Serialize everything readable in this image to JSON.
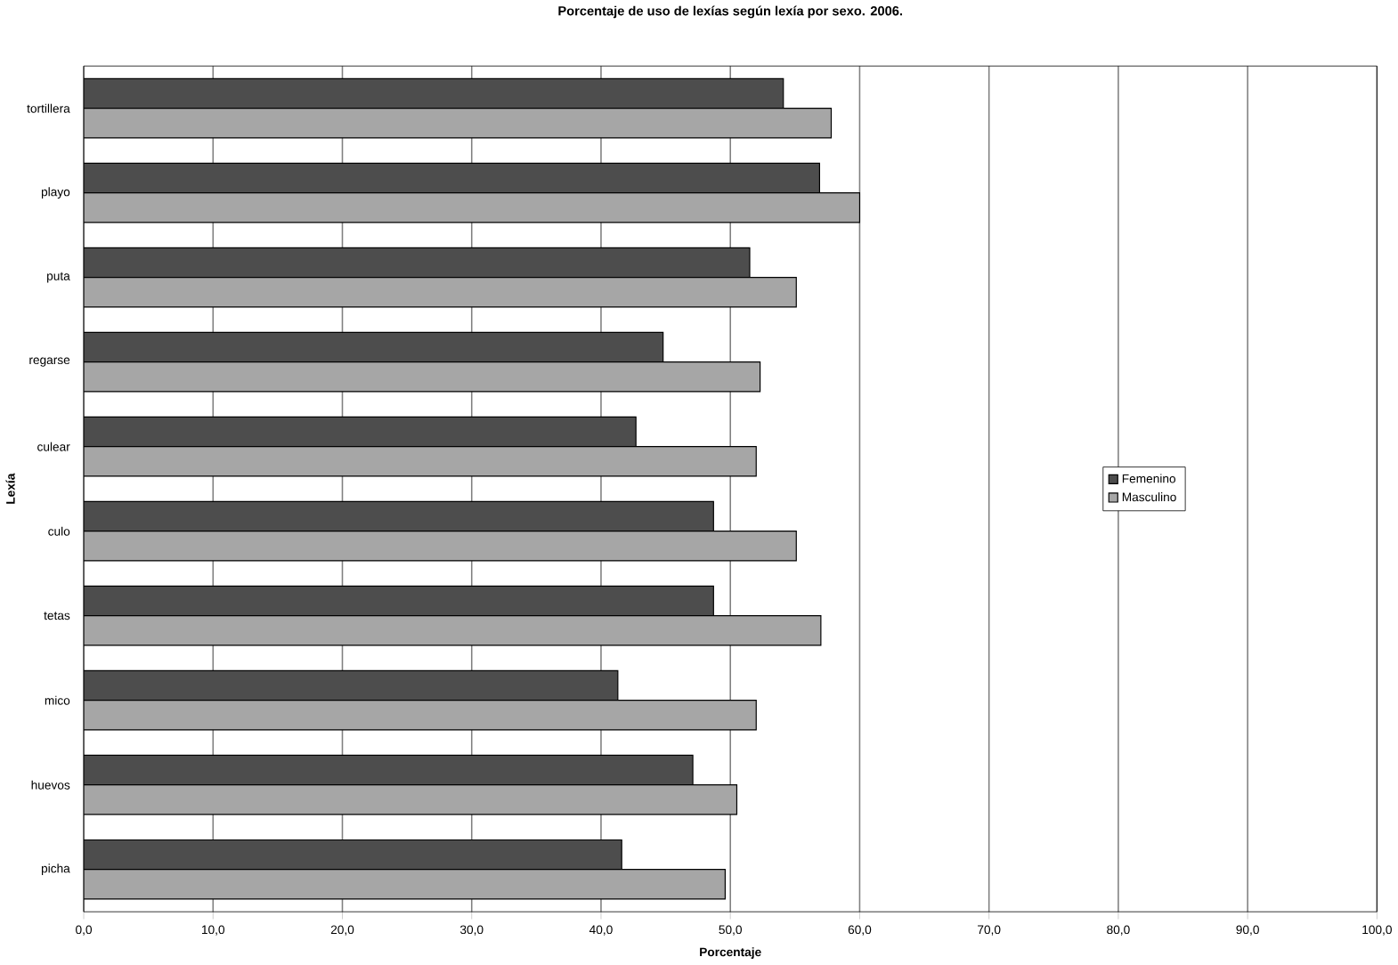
{
  "chart_data": {
    "type": "bar",
    "orientation": "horizontal",
    "title": "Porcentaje de uso de lexías según lexía por sexo. 2006.",
    "xlabel": "Porcentaje",
    "ylabel": "Lexía",
    "categories": [
      "tortillera",
      "playo",
      "puta",
      "regarse",
      "culear",
      "culo",
      "tetas",
      "mico",
      "huevos",
      "picha"
    ],
    "series": [
      {
        "name": "Femenino",
        "color": "#4d4d4d",
        "values": [
          54.1,
          56.9,
          51.5,
          44.8,
          42.7,
          48.7,
          48.7,
          41.3,
          47.1,
          41.6
        ]
      },
      {
        "name": "Masculino",
        "color": "#a6a6a6",
        "values": [
          57.8,
          60.0,
          55.1,
          52.3,
          52.0,
          55.1,
          57.0,
          52.0,
          50.5,
          49.6
        ]
      }
    ],
    "xlim": [
      0,
      100
    ],
    "xticks": [
      {
        "value": 0,
        "label": "0,0"
      },
      {
        "value": 10,
        "label": "10,0"
      },
      {
        "value": 20,
        "label": "20,0"
      },
      {
        "value": 30,
        "label": "30,0"
      },
      {
        "value": 40,
        "label": "40,0"
      },
      {
        "value": 50,
        "label": "50,0"
      },
      {
        "value": 60,
        "label": "60,0"
      },
      {
        "value": 70,
        "label": "70,0"
      },
      {
        "value": 80,
        "label": "80,0"
      },
      {
        "value": 90,
        "label": "90,0"
      },
      {
        "value": 100,
        "label": "100,0"
      }
    ],
    "grid": "x",
    "legend": "right"
  }
}
